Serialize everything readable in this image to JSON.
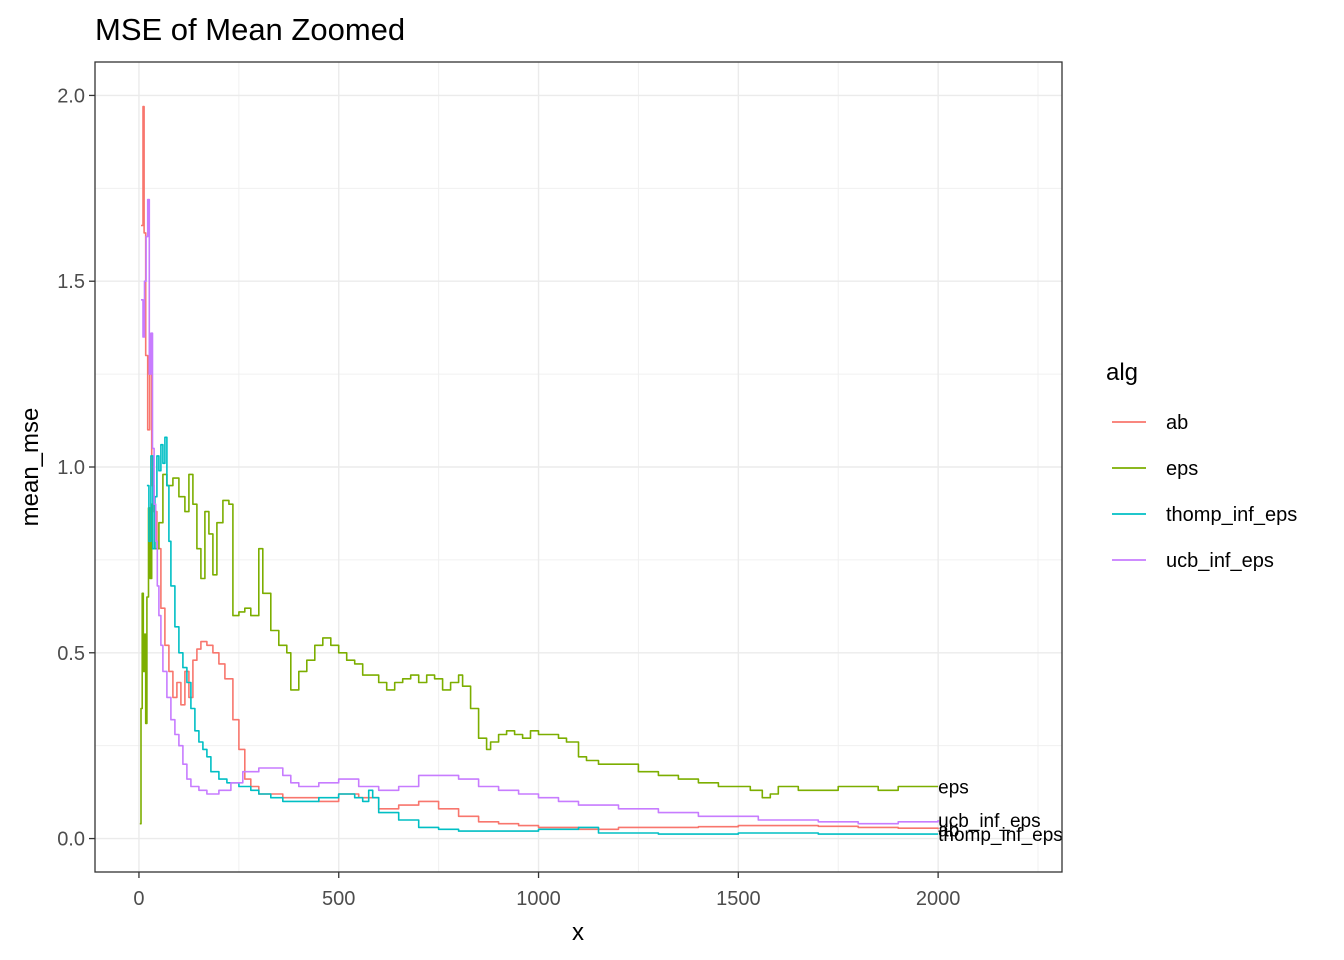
{
  "chart_data": {
    "type": "line",
    "title": "MSE of Mean Zoomed",
    "xlabel": "x",
    "ylabel": "mean_mse",
    "xlim": [
      -110,
      2310
    ],
    "ylim": [
      -0.09,
      2.09
    ],
    "x_ticks": [
      0,
      500,
      1000,
      1500,
      2000
    ],
    "x_tick_labels": [
      "0",
      "500",
      "1000",
      "1500",
      "2000"
    ],
    "y_ticks": [
      0,
      0.5,
      1,
      1.5,
      2
    ],
    "y_tick_labels": [
      "0.0",
      "0.5",
      "1.0",
      "1.5",
      "2.0"
    ],
    "grid": true,
    "legend": {
      "title": "alg",
      "position": "right"
    },
    "series": [
      {
        "name": "ab",
        "color": "#F8766D",
        "end_label": "ab",
        "points": [
          [
            5,
            1.65
          ],
          [
            10,
            1.97
          ],
          [
            13,
            1.63
          ],
          [
            17,
            1.3
          ],
          [
            22,
            1.1
          ],
          [
            27,
            1.25
          ],
          [
            32,
            0.95
          ],
          [
            38,
            0.88
          ],
          [
            45,
            0.78
          ],
          [
            55,
            0.62
          ],
          [
            65,
            0.52
          ],
          [
            75,
            0.45
          ],
          [
            85,
            0.38
          ],
          [
            95,
            0.42
          ],
          [
            105,
            0.36
          ],
          [
            115,
            0.45
          ],
          [
            125,
            0.38
          ],
          [
            135,
            0.48
          ],
          [
            145,
            0.51
          ],
          [
            155,
            0.53
          ],
          [
            170,
            0.52
          ],
          [
            185,
            0.5
          ],
          [
            200,
            0.47
          ],
          [
            215,
            0.43
          ],
          [
            235,
            0.32
          ],
          [
            250,
            0.24
          ],
          [
            265,
            0.16
          ],
          [
            280,
            0.14
          ],
          [
            300,
            0.12
          ],
          [
            330,
            0.12
          ],
          [
            360,
            0.11
          ],
          [
            400,
            0.11
          ],
          [
            450,
            0.1
          ],
          [
            500,
            0.12
          ],
          [
            550,
            0.11
          ],
          [
            600,
            0.08
          ],
          [
            650,
            0.09
          ],
          [
            700,
            0.1
          ],
          [
            750,
            0.08
          ],
          [
            800,
            0.06
          ],
          [
            850,
            0.045
          ],
          [
            900,
            0.04
          ],
          [
            950,
            0.035
          ],
          [
            1000,
            0.03
          ],
          [
            1050,
            0.03
          ],
          [
            1100,
            0.025
          ],
          [
            1150,
            0.025
          ],
          [
            1200,
            0.03
          ],
          [
            1300,
            0.03
          ],
          [
            1400,
            0.032
          ],
          [
            1500,
            0.035
          ],
          [
            1600,
            0.035
          ],
          [
            1700,
            0.033
          ],
          [
            1800,
            0.03
          ],
          [
            1900,
            0.028
          ],
          [
            2000,
            0.025
          ]
        ]
      },
      {
        "name": "eps",
        "color": "#7CAE00",
        "end_label": "eps",
        "points": [
          [
            2,
            0.04
          ],
          [
            5,
            0.35
          ],
          [
            8,
            0.66
          ],
          [
            11,
            0.45
          ],
          [
            14,
            0.55
          ],
          [
            17,
            0.31
          ],
          [
            20,
            0.65
          ],
          [
            24,
            0.89
          ],
          [
            28,
            0.7
          ],
          [
            32,
            0.9
          ],
          [
            40,
            0.78
          ],
          [
            50,
            0.85
          ],
          [
            60,
            0.98
          ],
          [
            70,
            0.95
          ],
          [
            85,
            0.97
          ],
          [
            100,
            0.92
          ],
          [
            115,
            0.88
          ],
          [
            125,
            0.98
          ],
          [
            135,
            0.9
          ],
          [
            145,
            0.78
          ],
          [
            155,
            0.7
          ],
          [
            165,
            0.88
          ],
          [
            175,
            0.82
          ],
          [
            185,
            0.71
          ],
          [
            195,
            0.85
          ],
          [
            210,
            0.91
          ],
          [
            225,
            0.9
          ],
          [
            235,
            0.6
          ],
          [
            250,
            0.61
          ],
          [
            265,
            0.62
          ],
          [
            280,
            0.6
          ],
          [
            290,
            0.6
          ],
          [
            300,
            0.78
          ],
          [
            310,
            0.66
          ],
          [
            330,
            0.56
          ],
          [
            350,
            0.52
          ],
          [
            370,
            0.5
          ],
          [
            380,
            0.4
          ],
          [
            400,
            0.45
          ],
          [
            420,
            0.48
          ],
          [
            440,
            0.52
          ],
          [
            460,
            0.54
          ],
          [
            480,
            0.52
          ],
          [
            500,
            0.5
          ],
          [
            520,
            0.48
          ],
          [
            540,
            0.47
          ],
          [
            560,
            0.44
          ],
          [
            580,
            0.44
          ],
          [
            600,
            0.42
          ],
          [
            620,
            0.4
          ],
          [
            640,
            0.42
          ],
          [
            660,
            0.43
          ],
          [
            680,
            0.44
          ],
          [
            700,
            0.42
          ],
          [
            720,
            0.44
          ],
          [
            740,
            0.43
          ],
          [
            760,
            0.4
          ],
          [
            780,
            0.42
          ],
          [
            800,
            0.44
          ],
          [
            810,
            0.41
          ],
          [
            830,
            0.35
          ],
          [
            850,
            0.27
          ],
          [
            870,
            0.24
          ],
          [
            880,
            0.26
          ],
          [
            900,
            0.28
          ],
          [
            920,
            0.29
          ],
          [
            940,
            0.28
          ],
          [
            960,
            0.27
          ],
          [
            980,
            0.29
          ],
          [
            1000,
            0.28
          ],
          [
            1020,
            0.28
          ],
          [
            1050,
            0.27
          ],
          [
            1070,
            0.26
          ],
          [
            1090,
            0.26
          ],
          [
            1100,
            0.22
          ],
          [
            1120,
            0.21
          ],
          [
            1150,
            0.2
          ],
          [
            1200,
            0.2
          ],
          [
            1250,
            0.18
          ],
          [
            1300,
            0.17
          ],
          [
            1350,
            0.16
          ],
          [
            1400,
            0.15
          ],
          [
            1450,
            0.14
          ],
          [
            1500,
            0.14
          ],
          [
            1530,
            0.13
          ],
          [
            1560,
            0.11
          ],
          [
            1580,
            0.12
          ],
          [
            1600,
            0.14
          ],
          [
            1650,
            0.13
          ],
          [
            1700,
            0.13
          ],
          [
            1750,
            0.14
          ],
          [
            1800,
            0.14
          ],
          [
            1850,
            0.13
          ],
          [
            1900,
            0.14
          ],
          [
            1950,
            0.14
          ],
          [
            2000,
            0.14
          ]
        ]
      },
      {
        "name": "thomp_inf_eps",
        "color": "#00BFC4",
        "end_label": "thomp_inf_eps",
        "points": [
          [
            20,
            0.95
          ],
          [
            25,
            0.8
          ],
          [
            30,
            1.03
          ],
          [
            35,
            0.78
          ],
          [
            40,
            0.92
          ],
          [
            45,
            1.03
          ],
          [
            50,
            0.99
          ],
          [
            55,
            1.06
          ],
          [
            60,
            1.01
          ],
          [
            65,
            1.08
          ],
          [
            70,
            0.95
          ],
          [
            75,
            0.8
          ],
          [
            80,
            0.68
          ],
          [
            90,
            0.57
          ],
          [
            100,
            0.5
          ],
          [
            110,
            0.46
          ],
          [
            120,
            0.42
          ],
          [
            130,
            0.35
          ],
          [
            140,
            0.29
          ],
          [
            150,
            0.26
          ],
          [
            160,
            0.24
          ],
          [
            170,
            0.22
          ],
          [
            180,
            0.18
          ],
          [
            200,
            0.16
          ],
          [
            220,
            0.15
          ],
          [
            250,
            0.14
          ],
          [
            280,
            0.13
          ],
          [
            300,
            0.12
          ],
          [
            330,
            0.11
          ],
          [
            360,
            0.1
          ],
          [
            400,
            0.1
          ],
          [
            450,
            0.11
          ],
          [
            500,
            0.12
          ],
          [
            540,
            0.11
          ],
          [
            560,
            0.1
          ],
          [
            575,
            0.13
          ],
          [
            585,
            0.11
          ],
          [
            600,
            0.07
          ],
          [
            650,
            0.05
          ],
          [
            700,
            0.03
          ],
          [
            750,
            0.025
          ],
          [
            800,
            0.02
          ],
          [
            850,
            0.02
          ],
          [
            900,
            0.02
          ],
          [
            1000,
            0.025
          ],
          [
            1050,
            0.025
          ],
          [
            1100,
            0.03
          ],
          [
            1150,
            0.015
          ],
          [
            1200,
            0.015
          ],
          [
            1300,
            0.012
          ],
          [
            1400,
            0.012
          ],
          [
            1500,
            0.015
          ],
          [
            1600,
            0.015
          ],
          [
            1700,
            0.012
          ],
          [
            1800,
            0.012
          ],
          [
            1900,
            0.012
          ],
          [
            2000,
            0.012
          ]
        ]
      },
      {
        "name": "ucb_inf_eps",
        "color": "#C77CFF",
        "end_label": "ucb_inf_eps",
        "points": [
          [
            5,
            1.45
          ],
          [
            10,
            1.35
          ],
          [
            14,
            1.5
          ],
          [
            18,
            1.62
          ],
          [
            22,
            1.72
          ],
          [
            26,
            1.25
          ],
          [
            30,
            1.36
          ],
          [
            34,
            1.05
          ],
          [
            38,
            0.9
          ],
          [
            42,
            0.8
          ],
          [
            46,
            0.68
          ],
          [
            50,
            0.6
          ],
          [
            55,
            0.52
          ],
          [
            60,
            0.45
          ],
          [
            70,
            0.38
          ],
          [
            80,
            0.32
          ],
          [
            90,
            0.28
          ],
          [
            100,
            0.25
          ],
          [
            110,
            0.2
          ],
          [
            120,
            0.16
          ],
          [
            130,
            0.14
          ],
          [
            150,
            0.13
          ],
          [
            170,
            0.12
          ],
          [
            200,
            0.13
          ],
          [
            230,
            0.15
          ],
          [
            260,
            0.18
          ],
          [
            300,
            0.19
          ],
          [
            340,
            0.19
          ],
          [
            360,
            0.17
          ],
          [
            380,
            0.15
          ],
          [
            400,
            0.14
          ],
          [
            450,
            0.15
          ],
          [
            500,
            0.16
          ],
          [
            550,
            0.14
          ],
          [
            600,
            0.13
          ],
          [
            650,
            0.14
          ],
          [
            700,
            0.17
          ],
          [
            750,
            0.17
          ],
          [
            800,
            0.16
          ],
          [
            850,
            0.14
          ],
          [
            900,
            0.13
          ],
          [
            950,
            0.12
          ],
          [
            1000,
            0.11
          ],
          [
            1050,
            0.1
          ],
          [
            1100,
            0.09
          ],
          [
            1150,
            0.09
          ],
          [
            1200,
            0.08
          ],
          [
            1300,
            0.07
          ],
          [
            1400,
            0.06
          ],
          [
            1500,
            0.06
          ],
          [
            1550,
            0.05
          ],
          [
            1600,
            0.05
          ],
          [
            1700,
            0.045
          ],
          [
            1800,
            0.04
          ],
          [
            1850,
            0.04
          ],
          [
            1900,
            0.045
          ],
          [
            2000,
            0.05
          ]
        ]
      }
    ]
  }
}
